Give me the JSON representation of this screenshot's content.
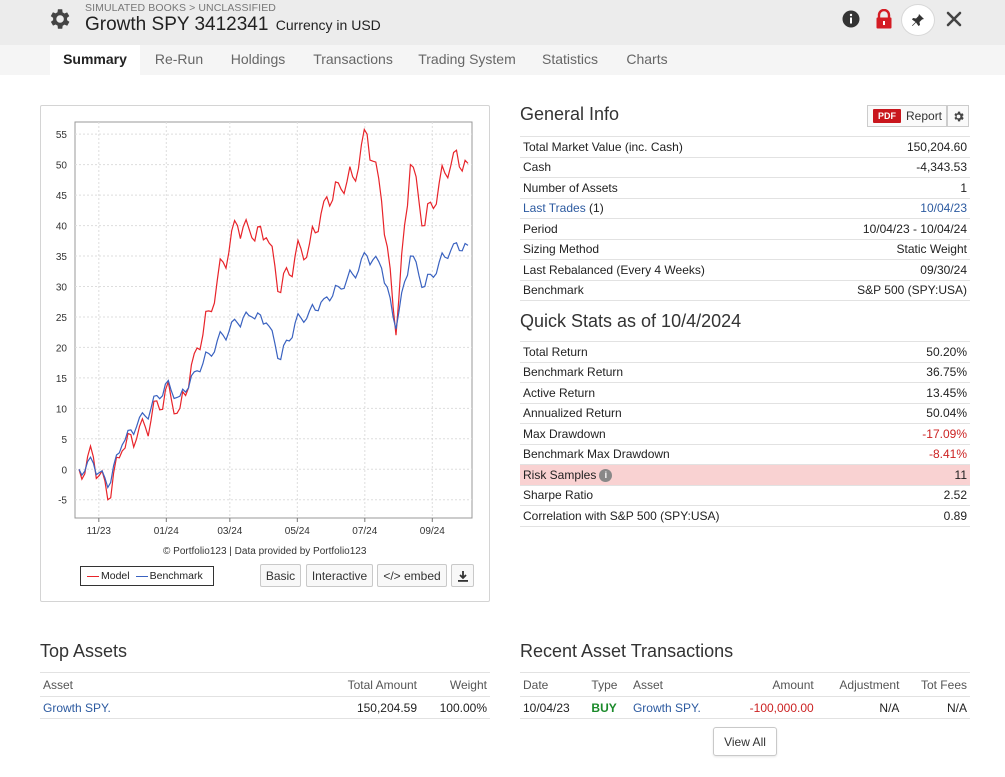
{
  "header": {
    "breadcrumb": "SIMULATED BOOKS > UNCLASSIFIED",
    "title": "Growth SPY 3412341",
    "currency": "Currency in USD",
    "icons": [
      "gear-icon",
      "info-icon",
      "lock-icon",
      "pin-icon",
      "close-icon"
    ]
  },
  "tabs": [
    {
      "label": "Summary",
      "active": true
    },
    {
      "label": "Re-Run"
    },
    {
      "label": "Holdings"
    },
    {
      "label": "Transactions"
    },
    {
      "label": "Trading System"
    },
    {
      "label": "Statistics"
    },
    {
      "label": "Charts"
    }
  ],
  "chart": {
    "credit": "© Portfolio123 | Data provided by Portfolio123",
    "legend": {
      "model": "Model",
      "benchmark": "Benchmark"
    },
    "buttons": {
      "basic": "Basic",
      "interactive": "Interactive",
      "embed": "</> embed"
    }
  },
  "chart_data": {
    "type": "line",
    "ylim": [
      -8,
      57
    ],
    "yticks": [
      -5,
      0,
      5,
      10,
      15,
      20,
      25,
      30,
      35,
      40,
      45,
      50,
      55
    ],
    "xticks": [
      "11/23",
      "01/24",
      "03/24",
      "05/24",
      "07/24",
      "09/24"
    ],
    "grid": true,
    "legend_position": "bottom-left",
    "colors": {
      "model": "#e8242a",
      "benchmark": "#3a62c0"
    },
    "x": [
      "10/04/23",
      "10/18/23",
      "11/01/23",
      "11/15/23",
      "11/29/23",
      "12/13/23",
      "12/27/23",
      "01/10/24",
      "01/24/24",
      "02/07/24",
      "02/21/24",
      "03/06/24",
      "03/20/24",
      "04/03/24",
      "04/17/24",
      "05/01/24",
      "05/15/24",
      "05/29/24",
      "06/12/24",
      "06/26/24",
      "07/10/24",
      "07/24/24",
      "08/07/24",
      "08/21/24",
      "09/04/24",
      "09/18/24",
      "10/02/24",
      "10/04/24"
    ],
    "series": [
      {
        "name": "Model",
        "values": [
          0,
          2,
          -5,
          3,
          5,
          8,
          13,
          10,
          19,
          26,
          34,
          40,
          38,
          38,
          29,
          35,
          37,
          44,
          47,
          48,
          55,
          44,
          22,
          50,
          40,
          47,
          52,
          50.2
        ]
      },
      {
        "name": "Benchmark",
        "values": [
          0,
          1,
          -3,
          4,
          7,
          10,
          14,
          12,
          16,
          19,
          22,
          24,
          25,
          24,
          18,
          24,
          26,
          28,
          30,
          32,
          35,
          33,
          23,
          35,
          30,
          34,
          37,
          36.75
        ]
      }
    ]
  },
  "general_info": {
    "title": "General Info",
    "report_label": "Report",
    "pdf_tag": "PDF",
    "rows": [
      {
        "label": "Total Market Value (inc. Cash)",
        "value": "150,204.60"
      },
      {
        "label": "Cash",
        "value": "-4,343.53"
      },
      {
        "label": "Number of Assets",
        "value": "1"
      },
      {
        "label": "Last Trades",
        "count": "(1)",
        "value": "10/04/23"
      },
      {
        "label": "Period",
        "value": "10/04/23 - 10/04/24"
      },
      {
        "label": "Sizing Method",
        "value": "Static Weight"
      },
      {
        "label": "Last Rebalanced (Every 4 Weeks)",
        "value": "09/30/24"
      },
      {
        "label": "Benchmark",
        "value": "S&P 500 (SPY:USA)"
      }
    ]
  },
  "quick_stats": {
    "title": "Quick Stats as of 10/4/2024",
    "rows": [
      {
        "label": "Total Return",
        "value": "50.20%"
      },
      {
        "label": "Benchmark Return",
        "value": "36.75%"
      },
      {
        "label": "Active Return",
        "value": "13.45%"
      },
      {
        "label": "Annualized Return",
        "value": "50.04%"
      },
      {
        "label": "Max Drawdown",
        "value": "-17.09%"
      },
      {
        "label": "Benchmark Max Drawdown",
        "value": "-8.41%"
      },
      {
        "label": "Risk Samples",
        "value": "11"
      },
      {
        "label": "Sharpe Ratio",
        "value": "2.52"
      },
      {
        "label": "Correlation with S&P 500 (SPY:USA)",
        "value": "0.89"
      }
    ]
  },
  "top_assets": {
    "title": "Top Assets",
    "headers": {
      "asset": "Asset",
      "total_amount": "Total Amount",
      "weight": "Weight"
    },
    "rows": [
      {
        "asset": "Growth SPY.",
        "total_amount": "150,204.59",
        "weight": "100.00%"
      }
    ]
  },
  "recent_transactions": {
    "title": "Recent Asset Transactions",
    "headers": {
      "date": "Date",
      "type": "Type",
      "asset": "Asset",
      "amount": "Amount",
      "adjustment": "Adjustment",
      "fees": "Tot Fees"
    },
    "rows": [
      {
        "date": "10/04/23",
        "type": "BUY",
        "asset": "Growth SPY.",
        "amount": "-100,000.00",
        "adjustment": "N/A",
        "fees": "N/A"
      }
    ],
    "view_all": "View All"
  }
}
